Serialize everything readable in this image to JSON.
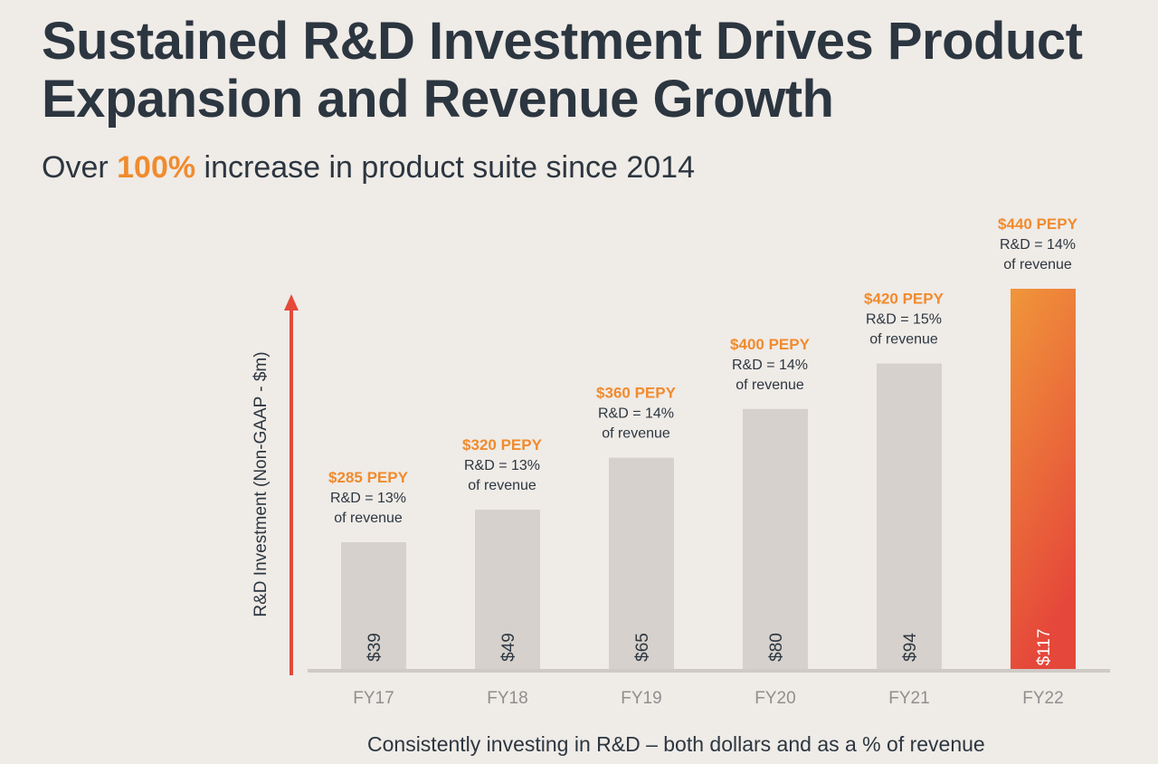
{
  "title": "Sustained R&D Investment Drives Product Expansion and Revenue Growth",
  "subtitle": {
    "prefix": "Over ",
    "highlight": "100%",
    "suffix": " increase in product suite since 2014"
  },
  "footnote": "Consistently investing in R&D – both dollars and as a % of revenue",
  "colors": {
    "bar": "#d6d1cc",
    "highlight_top": "#f0963a",
    "highlight_bottom": "#e5473a",
    "accent_text": "#f08b2e",
    "axis_arrow": "#e34a3a",
    "baseline": "#cfcac5",
    "dark_text": "#2c3640",
    "tick_text": "#8f8f8f"
  },
  "chart_data": {
    "type": "bar",
    "title": "Sustained R&D Investment Drives Product Expansion and Revenue Growth",
    "xlabel": "",
    "ylabel": "R&D Investment (Non-GAAP - $m)",
    "categories": [
      "FY17",
      "FY18",
      "FY19",
      "FY20",
      "FY21",
      "FY22"
    ],
    "values": [
      39,
      49,
      65,
      80,
      94,
      117
    ],
    "value_labels": [
      "$39",
      "$49",
      "$65",
      "$80",
      "$94",
      "$117"
    ],
    "highlighted_category": "FY22",
    "ylim": [
      0,
      117
    ],
    "grid": false,
    "annotations": [
      {
        "category": "FY17",
        "pepy": "$285 PEPY",
        "line1": "R&D = 13%",
        "line2": "of revenue"
      },
      {
        "category": "FY18",
        "pepy": "$320 PEPY",
        "line1": "R&D = 13%",
        "line2": "of revenue"
      },
      {
        "category": "FY19",
        "pepy": "$360 PEPY",
        "line1": "R&D = 14%",
        "line2": "of revenue"
      },
      {
        "category": "FY20",
        "pepy": "$400 PEPY",
        "line1": "R&D = 14%",
        "line2": "of revenue"
      },
      {
        "category": "FY21",
        "pepy": "$420 PEPY",
        "line1": "R&D = 15%",
        "line2": "of revenue"
      },
      {
        "category": "FY22",
        "pepy": "$440 PEPY",
        "line1": "R&D = 14%",
        "line2": "of revenue"
      }
    ]
  }
}
